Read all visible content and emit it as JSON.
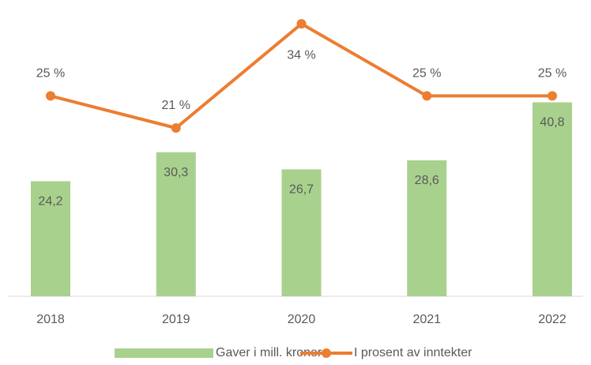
{
  "chart_data": {
    "type": "bar-line",
    "categories": [
      "2018",
      "2019",
      "2020",
      "2021",
      "2022"
    ],
    "series": [
      {
        "name": "Gaver i mill. kroner",
        "type": "bar",
        "color": "#a9d18e",
        "values": [
          24.2,
          30.3,
          26.7,
          28.6,
          40.8
        ],
        "value_labels": [
          "24,2",
          "30,3",
          "26,7",
          "28,6",
          "40,8"
        ]
      },
      {
        "name": "I prosent av inntekter",
        "type": "line",
        "axis": "y2",
        "color": "#ed7d31",
        "values": [
          25,
          21,
          34,
          25,
          25
        ],
        "value_labels": [
          "25 %",
          "21 %",
          "34 %",
          "25 %",
          "25 %"
        ]
      }
    ],
    "ylim": [
      0,
      59
    ],
    "y2lim": [
      0,
      35
    ],
    "legend": "bottom"
  }
}
